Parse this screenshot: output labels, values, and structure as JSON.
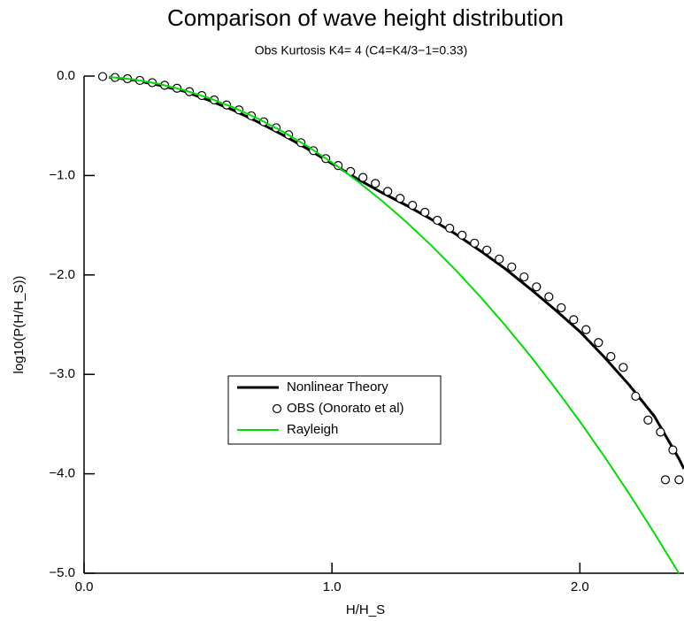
{
  "chart_data": {
    "type": "line",
    "title": "Comparison of wave height distribution",
    "subtitle": "Obs Kurtosis  K4= 4 (C4=K4/3−1=0.33)",
    "xlabel": "H/H_S",
    "ylabel": "log10(P(H/H_S))",
    "xlim": [
      0,
      2.42
    ],
    "ylim": [
      -5,
      0
    ],
    "xticks": [
      {
        "value": 0,
        "label": "0.0"
      },
      {
        "value": 1,
        "label": "1.0"
      },
      {
        "value": 2,
        "label": "2.0"
      }
    ],
    "yticks": [
      {
        "value": 0,
        "label": "0.0"
      },
      {
        "value": -1,
        "label": "−1.0"
      },
      {
        "value": -2,
        "label": "−2.0"
      },
      {
        "value": -3,
        "label": "−3.0"
      },
      {
        "value": -4,
        "label": "−4.0"
      },
      {
        "value": -5,
        "label": "−5.0"
      }
    ],
    "series": [
      {
        "name": "Nonlinear Theory",
        "color": "#000000",
        "style": "line",
        "x": [
          0.1,
          0.2,
          0.3,
          0.4,
          0.5,
          0.6,
          0.7,
          0.8,
          0.9,
          1.0,
          1.1,
          1.2,
          1.3,
          1.4,
          1.5,
          1.6,
          1.7,
          1.8,
          1.9,
          2.0,
          2.1,
          2.2,
          2.3,
          2.4,
          2.42
        ],
        "values": [
          -0.01,
          -0.04,
          -0.09,
          -0.15,
          -0.24,
          -0.34,
          -0.46,
          -0.59,
          -0.73,
          -0.88,
          -1.03,
          -1.17,
          -1.3,
          -1.44,
          -1.59,
          -1.76,
          -1.94,
          -2.14,
          -2.35,
          -2.57,
          -2.83,
          -3.11,
          -3.42,
          -3.85,
          -3.95
        ]
      },
      {
        "name": "OBS (Onorato et al)",
        "color": "#000000",
        "style": "circle",
        "x": [
          0.075,
          0.125,
          0.175,
          0.225,
          0.275,
          0.325,
          0.375,
          0.425,
          0.475,
          0.525,
          0.575,
          0.625,
          0.675,
          0.725,
          0.775,
          0.825,
          0.875,
          0.925,
          0.975,
          1.025,
          1.075,
          1.125,
          1.175,
          1.225,
          1.275,
          1.325,
          1.375,
          1.425,
          1.475,
          1.525,
          1.575,
          1.625,
          1.675,
          1.725,
          1.775,
          1.825,
          1.875,
          1.925,
          1.975,
          2.025,
          2.075,
          2.125,
          2.175,
          2.225,
          2.275,
          2.325,
          2.345,
          2.375,
          2.4
        ],
        "values": [
          -0.005,
          -0.014,
          -0.027,
          -0.044,
          -0.066,
          -0.092,
          -0.122,
          -0.157,
          -0.196,
          -0.24,
          -0.29,
          -0.34,
          -0.4,
          -0.46,
          -0.52,
          -0.59,
          -0.67,
          -0.75,
          -0.83,
          -0.9,
          -0.96,
          -1.02,
          -1.08,
          -1.16,
          -1.23,
          -1.3,
          -1.37,
          -1.45,
          -1.53,
          -1.6,
          -1.68,
          -1.75,
          -1.84,
          -1.92,
          -2.02,
          -2.12,
          -2.22,
          -2.33,
          -2.45,
          -2.55,
          -2.68,
          -2.82,
          -2.93,
          -3.22,
          -3.46,
          -3.58,
          -4.06,
          -3.76,
          -4.06
        ]
      },
      {
        "name": "Rayleigh",
        "color": "#00dd00",
        "style": "line",
        "x": [
          0.1,
          0.2,
          0.3,
          0.4,
          0.5,
          0.6,
          0.7,
          0.8,
          0.9,
          1.0,
          1.1,
          1.2,
          1.3,
          1.4,
          1.5,
          1.6,
          1.7,
          1.8,
          1.9,
          2.0,
          2.1,
          2.2,
          2.3,
          2.4
        ],
        "values": [
          -0.0087,
          -0.0347,
          -0.0782,
          -0.139,
          -0.217,
          -0.313,
          -0.426,
          -0.556,
          -0.704,
          -0.869,
          -1.051,
          -1.251,
          -1.468,
          -1.702,
          -1.954,
          -2.224,
          -2.51,
          -2.814,
          -3.136,
          -3.474,
          -3.831,
          -4.204,
          -4.595,
          -5.003
        ]
      }
    ]
  }
}
